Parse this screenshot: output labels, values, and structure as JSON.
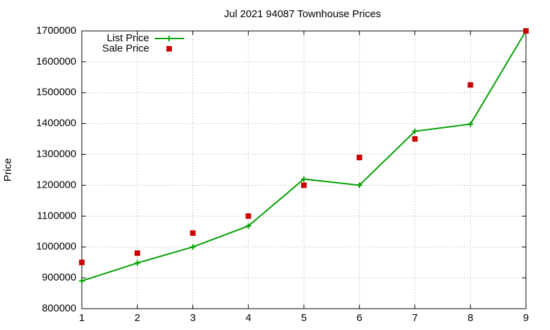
{
  "chart_data": {
    "type": "line",
    "title": "Jul 2021 94087 Townhouse Prices",
    "y_label": "Price",
    "x": [
      1,
      2,
      3,
      4,
      5,
      6,
      7,
      8,
      9
    ],
    "series": [
      {
        "name": "List Price",
        "color": "#00a000",
        "style": "linespoints",
        "values": [
          890000,
          948000,
          1000000,
          1068000,
          1220000,
          1200000,
          1375000,
          1398000,
          1700000
        ]
      },
      {
        "name": "Sale Price",
        "color": "#cc0000",
        "style": "points",
        "values": [
          950000,
          980000,
          1045000,
          1100000,
          1200000,
          1290000,
          1350000,
          1525000,
          1700000
        ]
      }
    ],
    "xlim": [
      1,
      9
    ],
    "xticks": [
      1,
      2,
      3,
      4,
      5,
      6,
      7,
      8,
      9
    ],
    "ylim": [
      800000,
      1700000
    ],
    "yticks": [
      800000,
      900000,
      1000000,
      1100000,
      1200000,
      1300000,
      1400000,
      1500000,
      1600000,
      1700000
    ],
    "grid": true,
    "legend_position": "top-left"
  }
}
